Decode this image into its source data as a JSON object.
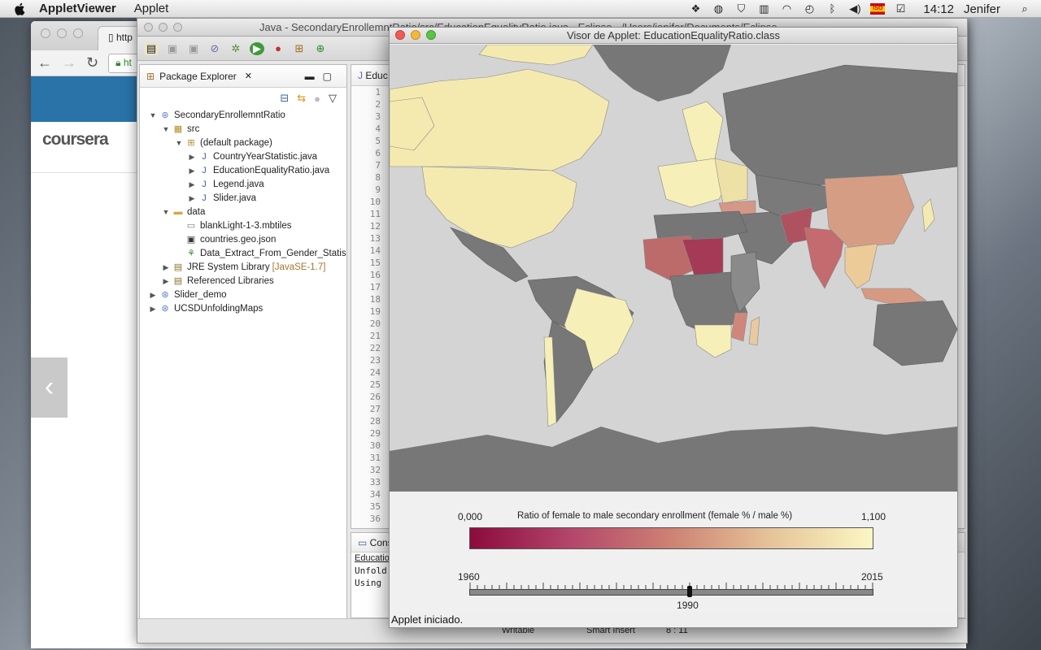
{
  "menubar": {
    "app_name": "AppletViewer",
    "menus": [
      "Applet"
    ],
    "clock": "14:12",
    "user": "Jenifer",
    "tray_icons": [
      "dropbox-icon",
      "sync-icon",
      "shield-icon",
      "battery-icon",
      "wifi-icon",
      "time-machine-icon",
      "bluetooth-icon",
      "volume-icon",
      "input-flag-icon",
      "screen-icon",
      "search-icon"
    ],
    "flag_text": "ISO"
  },
  "chrome": {
    "tab_label": "http",
    "url_text": "ht",
    "logo_text": "coursera"
  },
  "eclipse": {
    "title": "Java - SecondaryEnrollemntRatio/src/EducationEqualityRatio.java - Eclipse - /Users/jenifer/Documents/Eclipse",
    "package_explorer": {
      "tab_label": "Package Explorer",
      "tree": [
        {
          "label": "SecondaryEnrollemntRatio",
          "level": 0,
          "expanded": true,
          "icon": "project-icon"
        },
        {
          "label": "src",
          "level": 1,
          "expanded": true,
          "icon": "package-folder-icon"
        },
        {
          "label": "(default package)",
          "level": 2,
          "expanded": true,
          "icon": "package-icon"
        },
        {
          "label": "CountryYearStatistic.java",
          "level": 3,
          "expanded": false,
          "icon": "java-file-icon"
        },
        {
          "label": "EducationEqualityRatio.java",
          "level": 3,
          "expanded": false,
          "icon": "java-file-icon"
        },
        {
          "label": "Legend.java",
          "level": 3,
          "expanded": false,
          "icon": "java-file-icon"
        },
        {
          "label": "Slider.java",
          "level": 3,
          "expanded": false,
          "icon": "java-file-icon"
        },
        {
          "label": "data",
          "level": 1,
          "expanded": true,
          "icon": "folder-icon"
        },
        {
          "label": "blankLight-1-3.mbtiles",
          "level": 2,
          "leaf": true,
          "icon": "file-icon"
        },
        {
          "label": "countries.geo.json",
          "level": 2,
          "leaf": true,
          "icon": "json-file-icon"
        },
        {
          "label": "Data_Extract_From_Gender_Statis",
          "level": 2,
          "leaf": true,
          "icon": "csv-file-icon"
        },
        {
          "label": "JRE System Library",
          "decoration": "[JavaSE-1.7]",
          "level": 1,
          "expanded": false,
          "icon": "library-icon"
        },
        {
          "label": "Referenced Libraries",
          "level": 1,
          "expanded": false,
          "icon": "library-icon"
        },
        {
          "label": "Slider_demo",
          "level": 0,
          "expanded": false,
          "icon": "project-icon"
        },
        {
          "label": "UCSDUnfoldingMaps",
          "level": 0,
          "expanded": false,
          "icon": "project-icon"
        }
      ]
    },
    "editor": {
      "tab_label": "Educ",
      "line_numbers": [
        "1",
        "2",
        "3",
        "4",
        "5",
        "6",
        "7",
        "8",
        "9",
        "10",
        "11",
        "12",
        "13",
        "14",
        "15",
        "16",
        "17",
        "18",
        "19",
        "20",
        "21",
        "22",
        "23",
        "24",
        "25",
        "26",
        "27",
        "28",
        "29",
        "30",
        "31",
        "32",
        "33",
        "34",
        "35",
        "36"
      ]
    },
    "console": {
      "tab_label": "Cons",
      "lines": [
        "Educatio",
        "Unfold",
        "Using"
      ]
    },
    "status": {
      "writable": "Writable",
      "insert_mode": "Smart Insert",
      "position": "8 : 11"
    }
  },
  "applet": {
    "title": "Visor de Applet: EducationEqualityRatio.class",
    "legend": {
      "min_label": "0,000",
      "max_label": "1,100",
      "title": "Ratio of female to male secondary enrollment (female % / male %)",
      "min_value": 0.0,
      "max_value": 1.1,
      "colors": [
        "#8b0b3c",
        "#b4466b",
        "#cd8273",
        "#e6c49a",
        "#fbf7c4"
      ]
    },
    "slider": {
      "start_label": "1960",
      "end_label": "2015",
      "start_year": 1960,
      "end_year": 2015,
      "current_year": 1990,
      "current_label": "1990"
    },
    "status_text": "Applet iniciado."
  }
}
